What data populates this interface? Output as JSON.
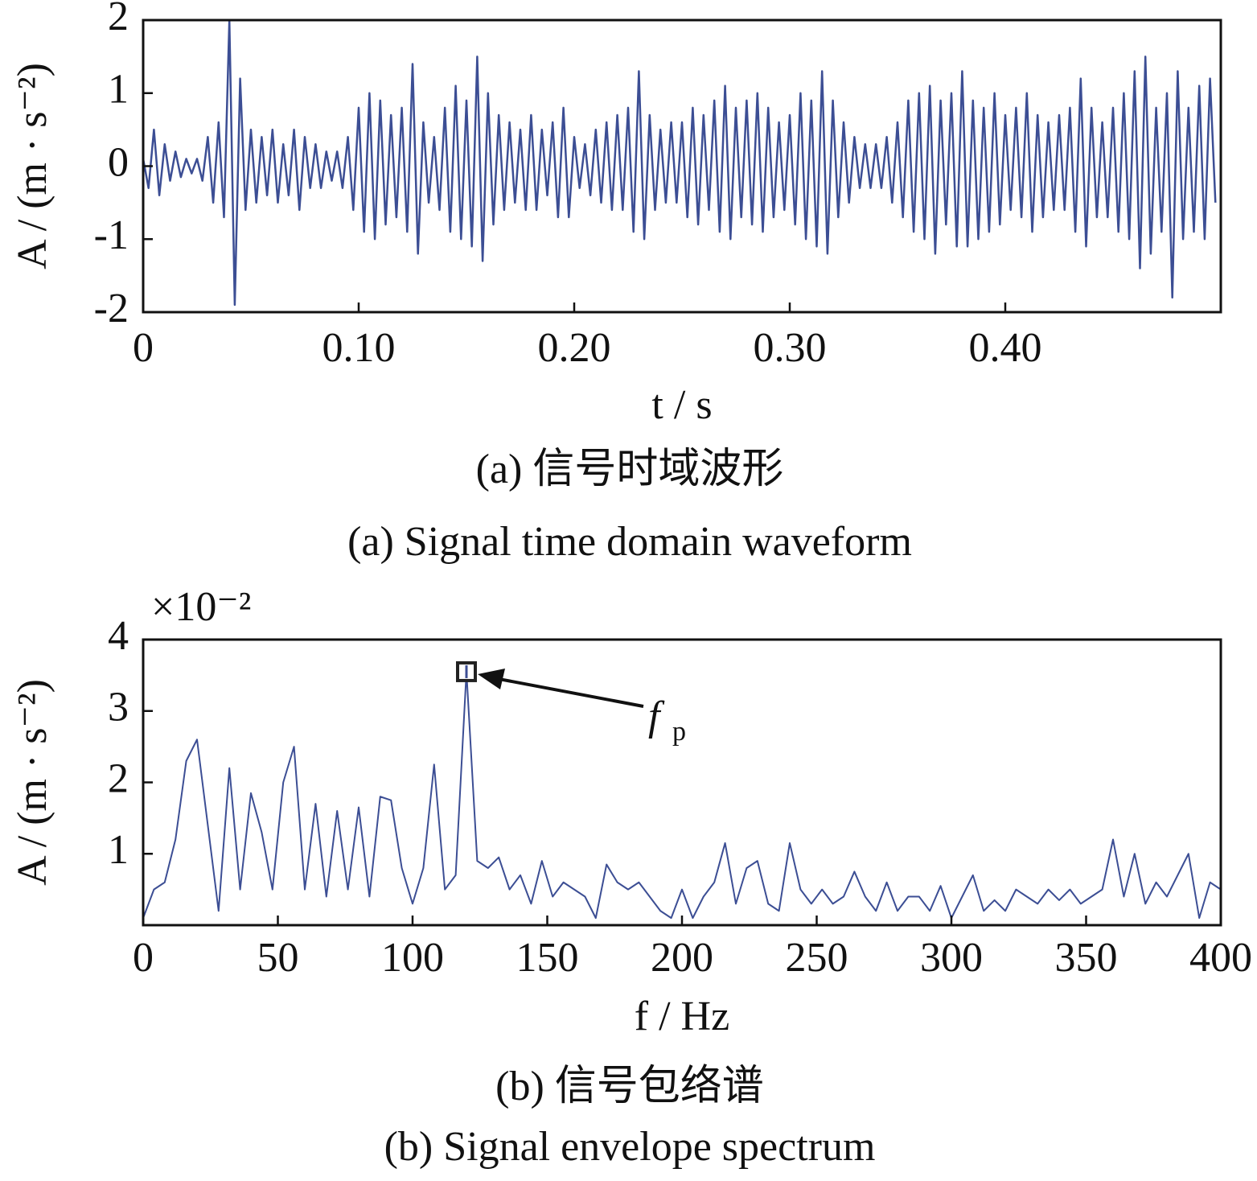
{
  "chart_data": [
    {
      "type": "line",
      "ylabel": "A / (m · s⁻²)",
      "xlabel": "t / s",
      "caption_cn": "(a)  信号时域波形",
      "caption_en": "(a)  Signal time domain waveform",
      "xlim": [
        0,
        0.5
      ],
      "ylim": [
        -2,
        2
      ],
      "xticks": [
        0,
        {
          "value": 0.1,
          "label": "0.10"
        },
        {
          "value": 0.2,
          "label": "0.20"
        },
        {
          "value": 0.3,
          "label": "0.30"
        },
        {
          "value": 0.4,
          "label": "0.40"
        }
      ],
      "yticks": [
        -2,
        -1,
        0,
        1,
        2
      ],
      "x": [
        0,
        0.0025,
        0.005,
        0.0075,
        0.01,
        0.0125,
        0.015,
        0.0175,
        0.02,
        0.0225,
        0.025,
        0.0275,
        0.03,
        0.0325,
        0.035,
        0.0375,
        0.04,
        0.0425,
        0.045,
        0.0475,
        0.05,
        0.0525,
        0.055,
        0.0575,
        0.06,
        0.0625,
        0.065,
        0.0675,
        0.07,
        0.0725,
        0.075,
        0.0775,
        0.08,
        0.0825,
        0.085,
        0.0875,
        0.09,
        0.0925,
        0.095,
        0.0975,
        0.1,
        0.1025,
        0.105,
        0.1075,
        0.11,
        0.1125,
        0.115,
        0.1175,
        0.12,
        0.1225,
        0.125,
        0.1275,
        0.13,
        0.1325,
        0.135,
        0.1375,
        0.14,
        0.1425,
        0.145,
        0.1475,
        0.15,
        0.1525,
        0.155,
        0.1575,
        0.16,
        0.1625,
        0.165,
        0.1675,
        0.17,
        0.1725,
        0.175,
        0.1775,
        0.18,
        0.1825,
        0.185,
        0.1875,
        0.19,
        0.1925,
        0.195,
        0.1975,
        0.2,
        0.2025,
        0.205,
        0.2075,
        0.21,
        0.2125,
        0.215,
        0.2175,
        0.22,
        0.2225,
        0.225,
        0.2275,
        0.23,
        0.2325,
        0.235,
        0.2375,
        0.24,
        0.2425,
        0.245,
        0.2475,
        0.25,
        0.2525,
        0.255,
        0.2575,
        0.26,
        0.2625,
        0.265,
        0.2675,
        0.27,
        0.2725,
        0.275,
        0.2775,
        0.28,
        0.2825,
        0.285,
        0.2875,
        0.29,
        0.2925,
        0.295,
        0.2975,
        0.3,
        0.3025,
        0.305,
        0.3075,
        0.31,
        0.3125,
        0.315,
        0.3175,
        0.32,
        0.3225,
        0.325,
        0.3275,
        0.33,
        0.3325,
        0.335,
        0.3375,
        0.34,
        0.3425,
        0.345,
        0.3475,
        0.35,
        0.3525,
        0.355,
        0.3575,
        0.36,
        0.3625,
        0.365,
        0.3675,
        0.37,
        0.3725,
        0.375,
        0.3775,
        0.38,
        0.3825,
        0.385,
        0.3875,
        0.39,
        0.3925,
        0.395,
        0.3975,
        0.4,
        0.4025,
        0.405,
        0.4075,
        0.41,
        0.4125,
        0.415,
        0.4175,
        0.42,
        0.4225,
        0.425,
        0.4275,
        0.43,
        0.4325,
        0.435,
        0.4375,
        0.44,
        0.4425,
        0.445,
        0.4475,
        0.45,
        0.4525,
        0.455,
        0.4575,
        0.46,
        0.4625,
        0.465,
        0.4675,
        0.47,
        0.4725,
        0.475,
        0.4775,
        0.48,
        0.4825,
        0.485,
        0.4875,
        0.49,
        0.4925,
        0.495,
        0.4975
      ],
      "series": [
        {
          "color": "#3c4e94",
          "values": [
            0.1,
            -0.3,
            0.5,
            -0.4,
            0.3,
            -0.2,
            0.2,
            -0.15,
            0.1,
            -0.1,
            0.1,
            -0.2,
            0.4,
            -0.5,
            0.6,
            -0.7,
            2.0,
            -1.9,
            1.2,
            -0.6,
            0.5,
            -0.5,
            0.4,
            -0.4,
            0.5,
            -0.5,
            0.3,
            -0.4,
            0.5,
            -0.6,
            0.4,
            -0.3,
            0.3,
            -0.3,
            0.2,
            -0.2,
            0.2,
            -0.3,
            0.4,
            -0.6,
            0.8,
            -0.9,
            1.0,
            -1.0,
            0.9,
            -0.8,
            0.7,
            -0.7,
            0.8,
            -0.9,
            1.4,
            -1.2,
            0.6,
            -0.5,
            0.4,
            -0.6,
            0.8,
            -0.9,
            1.1,
            -1.0,
            0.9,
            -1.1,
            1.5,
            -1.3,
            1.0,
            -0.8,
            0.7,
            -0.6,
            0.6,
            -0.5,
            0.5,
            -0.6,
            0.7,
            -0.6,
            0.5,
            -0.4,
            0.6,
            -0.7,
            0.8,
            -0.7,
            0.4,
            -0.3,
            0.3,
            -0.4,
            0.5,
            -0.5,
            0.6,
            -0.6,
            0.7,
            -0.6,
            0.8,
            -0.9,
            1.3,
            -1.0,
            0.7,
            -0.6,
            0.5,
            -0.5,
            0.6,
            -0.5,
            0.6,
            -0.7,
            0.8,
            -0.8,
            0.7,
            -0.6,
            0.9,
            -0.9,
            1.1,
            -1.0,
            0.8,
            -0.7,
            0.9,
            -0.8,
            1.0,
            -0.9,
            0.8,
            -0.7,
            0.6,
            -0.6,
            0.7,
            -0.8,
            1.0,
            -1.0,
            0.9,
            -1.1,
            1.3,
            -1.2,
            0.9,
            -0.7,
            0.6,
            -0.5,
            0.4,
            -0.3,
            0.3,
            -0.3,
            0.3,
            -0.3,
            0.4,
            -0.5,
            0.6,
            -0.7,
            0.9,
            -0.9,
            1.0,
            -1.0,
            1.1,
            -1.2,
            0.9,
            -0.8,
            1.0,
            -1.1,
            1.3,
            -1.1,
            0.9,
            -1.0,
            0.8,
            -0.9,
            1.0,
            -0.8,
            0.7,
            -0.6,
            0.8,
            -0.7,
            1.0,
            -0.9,
            0.7,
            -0.7,
            0.6,
            -0.6,
            0.7,
            -0.6,
            0.8,
            -0.9,
            1.2,
            -1.1,
            0.8,
            -0.7,
            0.6,
            -0.7,
            0.8,
            -0.9,
            1.0,
            -1.0,
            1.3,
            -1.4,
            1.5,
            -1.2,
            0.8,
            -0.9,
            1.0,
            -1.8,
            1.3,
            -1.0,
            0.8,
            -0.9,
            1.1,
            -1.0,
            1.2,
            -0.5
          ]
        }
      ]
    },
    {
      "type": "line",
      "ylabel": "A / (m · s⁻²)",
      "xlabel": "f / Hz",
      "y_multiplier": "×10⁻²",
      "caption_cn": "(b)  信号包络谱",
      "caption_en": "(b)  Signal envelope spectrum",
      "xlim": [
        0,
        400
      ],
      "ylim": [
        0,
        4
      ],
      "xticks": [
        0,
        50,
        100,
        150,
        200,
        250,
        300,
        350,
        400
      ],
      "yticks": [
        1,
        2,
        3,
        4
      ],
      "annotation": {
        "text": "f",
        "subscript": "p",
        "x": 120,
        "y": 3.55
      },
      "x": [
        0,
        4,
        8,
        12,
        16,
        20,
        24,
        28,
        32,
        36,
        40,
        44,
        48,
        52,
        56,
        60,
        64,
        68,
        72,
        76,
        80,
        84,
        88,
        92,
        96,
        100,
        104,
        108,
        112,
        116,
        120,
        124,
        128,
        132,
        136,
        140,
        144,
        148,
        152,
        156,
        160,
        164,
        168,
        172,
        176,
        180,
        184,
        188,
        192,
        196,
        200,
        204,
        208,
        212,
        216,
        220,
        224,
        228,
        232,
        236,
        240,
        244,
        248,
        252,
        256,
        260,
        264,
        268,
        272,
        276,
        280,
        284,
        288,
        292,
        296,
        300,
        304,
        308,
        312,
        316,
        320,
        324,
        328,
        332,
        336,
        340,
        344,
        348,
        352,
        356,
        360,
        364,
        368,
        372,
        376,
        380,
        384,
        388,
        392,
        396,
        400
      ],
      "series": [
        {
          "color": "#3c4e94",
          "values": [
            0.1,
            0.5,
            0.6,
            1.2,
            2.3,
            2.6,
            1.4,
            0.2,
            2.2,
            0.5,
            1.85,
            1.3,
            0.5,
            2.0,
            2.5,
            0.5,
            1.7,
            0.4,
            1.6,
            0.5,
            1.65,
            0.4,
            1.8,
            1.75,
            0.8,
            0.3,
            0.8,
            2.25,
            0.5,
            0.7,
            3.55,
            0.9,
            0.8,
            0.95,
            0.5,
            0.7,
            0.3,
            0.9,
            0.4,
            0.6,
            0.5,
            0.4,
            0.1,
            0.85,
            0.6,
            0.5,
            0.6,
            0.4,
            0.2,
            0.1,
            0.5,
            0.1,
            0.4,
            0.6,
            1.15,
            0.3,
            0.8,
            0.9,
            0.3,
            0.2,
            1.15,
            0.5,
            0.3,
            0.5,
            0.3,
            0.4,
            0.75,
            0.4,
            0.2,
            0.6,
            0.2,
            0.4,
            0.4,
            0.2,
            0.55,
            0.1,
            0.4,
            0.7,
            0.2,
            0.35,
            0.2,
            0.5,
            0.4,
            0.3,
            0.5,
            0.35,
            0.5,
            0.3,
            0.4,
            0.5,
            1.2,
            0.4,
            1.0,
            0.3,
            0.6,
            0.4,
            0.7,
            1.0,
            0.1,
            0.6,
            0.5
          ]
        }
      ]
    }
  ]
}
